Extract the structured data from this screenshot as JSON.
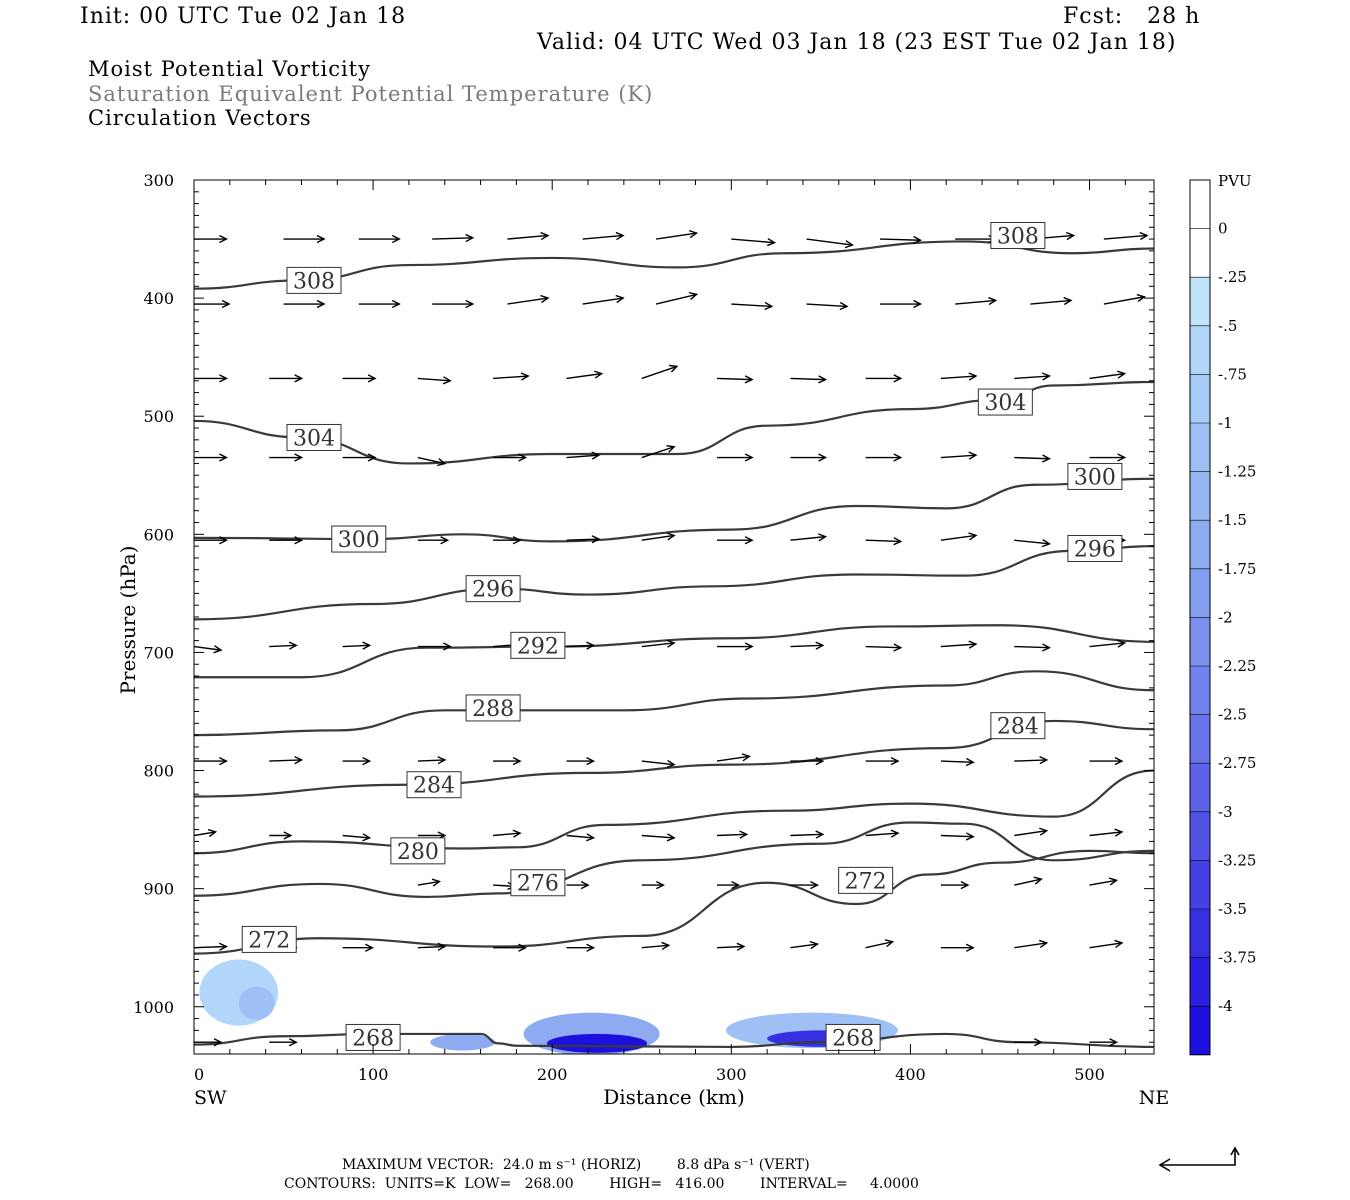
{
  "header": {
    "init": "Init: 00 UTC Tue 02 Jan 18",
    "fcst": "Fcst:   28 h",
    "valid": "Valid: 04 UTC Wed 03 Jan 18 (23 EST Tue 02 Jan 18)",
    "field1": "Moist Potential Vorticity",
    "field2": "Saturation Equivalent Potential Temperature (K)",
    "field3": "Circulation Vectors"
  },
  "footer": {
    "max_vector": "MAXIMUM VECTOR:  24.0 m s⁻¹ (HORIZ)        8.8 dPa s⁻¹ (VERT)",
    "contours": "CONTOURS:  UNITS=K  LOW=   268.00        HIGH=   416.00        INTERVAL=     4.0000"
  },
  "colors": {
    "contour": "#3a3a3a",
    "vector": "#000000",
    "axis": "#000000"
  },
  "chart_data": {
    "type": "contour",
    "xlabel": "Distance (km)",
    "ylabel": "Pressure (hPa)",
    "x_ticks": [
      "0",
      "100",
      "200",
      "300",
      "400",
      "500"
    ],
    "y_ticks": [
      "300",
      "400",
      "500",
      "600",
      "700",
      "800",
      "900",
      "1000"
    ],
    "xlim": [
      0,
      536
    ],
    "ylim": [
      1040,
      300
    ],
    "x_end_labels": {
      "left": "SW",
      "right": "NE"
    },
    "colorbar": {
      "unit": "PVU",
      "labels": [
        "0",
        "-.25",
        "-.5",
        "-.75",
        "-1",
        "-1.25",
        "-1.5",
        "-1.75",
        "-2",
        "-2.25",
        "-2.5",
        "-2.75",
        "-3",
        "-3.25",
        "-3.5",
        "-3.75",
        "-4"
      ],
      "colors": [
        "#ffffff",
        "#ffffff",
        "#c2e4fa",
        "#b2d6f9",
        "#a7ccf7",
        "#9ec0f5",
        "#96b6f4",
        "#8eabf2",
        "#859ff0",
        "#7c91ee",
        "#7282ec",
        "#6873ea",
        "#5d63e8",
        "#5152e6",
        "#4441e4",
        "#362fe2",
        "#2a1fe0",
        "#1d0fde"
      ]
    },
    "contours": [
      {
        "level": "308",
        "label_at": [
          [
            67,
            385
          ],
          [
            460,
            347
          ]
        ],
        "points": [
          [
            0,
            392
          ],
          [
            60,
            385
          ],
          [
            120,
            372
          ],
          [
            200,
            366
          ],
          [
            270,
            374
          ],
          [
            330,
            362
          ],
          [
            430,
            352
          ],
          [
            490,
            362
          ],
          [
            536,
            358
          ]
        ]
      },
      {
        "level": "304",
        "label_at": [
          [
            67,
            518
          ],
          [
            453,
            488
          ]
        ],
        "points": [
          [
            0,
            504
          ],
          [
            60,
            518
          ],
          [
            120,
            540
          ],
          [
            200,
            532
          ],
          [
            270,
            532
          ],
          [
            320,
            508
          ],
          [
            400,
            494
          ],
          [
            450,
            486
          ],
          [
            480,
            474
          ],
          [
            536,
            471
          ]
        ]
      },
      {
        "level": "300",
        "label_at": [
          [
            92,
            604
          ],
          [
            503,
            551
          ]
        ],
        "points": [
          [
            0,
            603
          ],
          [
            100,
            604
          ],
          [
            150,
            600
          ],
          [
            200,
            606
          ],
          [
            300,
            596
          ],
          [
            370,
            576
          ],
          [
            420,
            578
          ],
          [
            470,
            558
          ],
          [
            536,
            553
          ]
        ]
      },
      {
        "level": "296",
        "label_at": [
          [
            167,
            646
          ],
          [
            503,
            612
          ]
        ],
        "points": [
          [
            0,
            672
          ],
          [
            100,
            659
          ],
          [
            170,
            646
          ],
          [
            220,
            651
          ],
          [
            290,
            644
          ],
          [
            370,
            634
          ],
          [
            430,
            635
          ],
          [
            490,
            614
          ],
          [
            536,
            610
          ]
        ]
      },
      {
        "level": "292",
        "label_at": [
          [
            192,
            694
          ]
        ],
        "points": [
          [
            0,
            721
          ],
          [
            60,
            721
          ],
          [
            130,
            696
          ],
          [
            200,
            695
          ],
          [
            300,
            688
          ],
          [
            390,
            678
          ],
          [
            450,
            677
          ],
          [
            536,
            691
          ]
        ]
      },
      {
        "level": "288",
        "label_at": [
          [
            167,
            747
          ]
        ],
        "points": [
          [
            0,
            770
          ],
          [
            80,
            766
          ],
          [
            140,
            749
          ],
          [
            240,
            749
          ],
          [
            310,
            739
          ],
          [
            420,
            728
          ],
          [
            470,
            716
          ],
          [
            536,
            732
          ]
        ]
      },
      {
        "level": "284",
        "label_at": [
          [
            134,
            812
          ],
          [
            460,
            762
          ]
        ],
        "points": [
          [
            0,
            822
          ],
          [
            120,
            812
          ],
          [
            220,
            802
          ],
          [
            300,
            795
          ],
          [
            420,
            781
          ],
          [
            480,
            758
          ],
          [
            536,
            765
          ]
        ]
      },
      {
        "level": "280",
        "label_at": [
          [
            125,
            868
          ]
        ],
        "points": [
          [
            0,
            870
          ],
          [
            60,
            860
          ],
          [
            150,
            866
          ],
          [
            180,
            865
          ],
          [
            230,
            846
          ],
          [
            330,
            834
          ],
          [
            400,
            828
          ],
          [
            480,
            839
          ],
          [
            536,
            800
          ]
        ]
      },
      {
        "level": "276",
        "label_at": [
          [
            192,
            895
          ]
        ],
        "points": [
          [
            0,
            906
          ],
          [
            70,
            896
          ],
          [
            130,
            907
          ],
          [
            170,
            904
          ],
          [
            250,
            876
          ],
          [
            350,
            862
          ],
          [
            400,
            844
          ],
          [
            430,
            845
          ],
          [
            480,
            876
          ],
          [
            536,
            868
          ]
        ]
      },
      {
        "level": "272",
        "label_at": [
          [
            42,
            943
          ],
          [
            375,
            893
          ]
        ],
        "points": [
          [
            0,
            955
          ],
          [
            70,
            942
          ],
          [
            170,
            949
          ],
          [
            250,
            940
          ],
          [
            320,
            895
          ],
          [
            370,
            913
          ],
          [
            410,
            888
          ],
          [
            450,
            878
          ],
          [
            500,
            868
          ],
          [
            536,
            870
          ]
        ]
      },
      {
        "level": "268",
        "label_at": [
          [
            100,
            1026
          ],
          [
            368,
            1026
          ]
        ],
        "points": [
          [
            0,
            1032
          ],
          [
            50,
            1025
          ],
          [
            100,
            1023
          ],
          [
            160,
            1023
          ],
          [
            170,
            1031
          ],
          [
            180,
            1033
          ],
          [
            300,
            1034
          ],
          [
            350,
            1030
          ],
          [
            420,
            1023
          ],
          [
            460,
            1030
          ],
          [
            536,
            1034
          ]
        ]
      }
    ],
    "pv_regions": [
      {
        "center": [
          25,
          988
        ],
        "radius": [
          22,
          28
        ],
        "value": -0.5
      },
      {
        "center": [
          35,
          997
        ],
        "radius": [
          10,
          14
        ],
        "value": -1.0
      },
      {
        "center": [
          150,
          1030
        ],
        "radius": [
          18,
          7
        ],
        "value": -1.5
      },
      {
        "center": [
          222,
          1023
        ],
        "radius": [
          38,
          18
        ],
        "value": -1.5
      },
      {
        "center": [
          225,
          1031
        ],
        "radius": [
          28,
          8
        ],
        "value": -4.0
      },
      {
        "center": [
          345,
          1020
        ],
        "radius": [
          48,
          15
        ],
        "value": -1.0
      },
      {
        "center": [
          350,
          1027
        ],
        "radius": [
          30,
          7
        ],
        "value": -3.5
      }
    ],
    "vectors": [
      [
        0,
        350,
        12,
        0
      ],
      [
        50,
        350,
        15,
        0
      ],
      [
        92,
        350,
        15,
        0
      ],
      [
        133,
        350,
        15,
        -1
      ],
      [
        175,
        350,
        15,
        -3
      ],
      [
        217,
        350,
        15,
        -3
      ],
      [
        258,
        350,
        15,
        -5
      ],
      [
        300,
        350,
        16,
        3
      ],
      [
        342,
        350,
        17,
        5
      ],
      [
        383,
        350,
        15,
        1
      ],
      [
        425,
        350,
        15,
        0
      ],
      [
        467,
        350,
        16,
        -3
      ],
      [
        508,
        350,
        16,
        -3
      ],
      [
        0,
        405,
        13,
        0
      ],
      [
        50,
        405,
        15,
        0
      ],
      [
        92,
        405,
        15,
        0
      ],
      [
        133,
        405,
        15,
        0
      ],
      [
        175,
        405,
        15,
        -5
      ],
      [
        217,
        405,
        15,
        -5
      ],
      [
        258,
        405,
        15,
        -8
      ],
      [
        300,
        405,
        15,
        2
      ],
      [
        342,
        405,
        15,
        2
      ],
      [
        383,
        405,
        15,
        0
      ],
      [
        425,
        405,
        15,
        -3
      ],
      [
        467,
        405,
        15,
        -3
      ],
      [
        508,
        405,
        15,
        -6
      ],
      [
        0,
        468,
        12,
        0
      ],
      [
        42,
        468,
        12,
        0
      ],
      [
        83,
        468,
        12,
        0
      ],
      [
        125,
        468,
        12,
        2
      ],
      [
        167,
        468,
        13,
        -2
      ],
      [
        208,
        468,
        13,
        -4
      ],
      [
        250,
        468,
        13,
        -10
      ],
      [
        292,
        468,
        13,
        1
      ],
      [
        333,
        468,
        13,
        1
      ],
      [
        375,
        468,
        13,
        0
      ],
      [
        417,
        468,
        13,
        -2
      ],
      [
        458,
        468,
        13,
        -2
      ],
      [
        500,
        468,
        13,
        -4
      ],
      [
        0,
        535,
        12,
        0
      ],
      [
        42,
        535,
        12,
        0
      ],
      [
        83,
        535,
        12,
        0
      ],
      [
        125,
        535,
        10,
        5
      ],
      [
        167,
        535,
        12,
        0
      ],
      [
        208,
        535,
        12,
        -2
      ],
      [
        250,
        535,
        12,
        -9
      ],
      [
        292,
        535,
        13,
        0
      ],
      [
        333,
        535,
        13,
        0
      ],
      [
        375,
        535,
        13,
        0
      ],
      [
        417,
        535,
        13,
        -2
      ],
      [
        458,
        535,
        13,
        1
      ],
      [
        500,
        535,
        13,
        0
      ],
      [
        0,
        605,
        12,
        0
      ],
      [
        42,
        605,
        12,
        0
      ],
      [
        83,
        605,
        12,
        0
      ],
      [
        125,
        605,
        11,
        0
      ],
      [
        167,
        605,
        10,
        0
      ],
      [
        208,
        605,
        12,
        -1
      ],
      [
        250,
        605,
        12,
        -4
      ],
      [
        292,
        605,
        13,
        0
      ],
      [
        333,
        605,
        13,
        -3
      ],
      [
        375,
        605,
        13,
        1
      ],
      [
        417,
        605,
        13,
        -4
      ],
      [
        458,
        605,
        13,
        3
      ],
      [
        500,
        605,
        13,
        0
      ],
      [
        0,
        695,
        10,
        3
      ],
      [
        42,
        695,
        10,
        -1
      ],
      [
        83,
        695,
        10,
        -1
      ],
      [
        125,
        695,
        12,
        0
      ],
      [
        167,
        695,
        12,
        -2
      ],
      [
        208,
        695,
        10,
        -1
      ],
      [
        250,
        695,
        12,
        -3
      ],
      [
        292,
        695,
        13,
        0
      ],
      [
        333,
        695,
        12,
        -1
      ],
      [
        375,
        695,
        13,
        1
      ],
      [
        417,
        695,
        13,
        -2
      ],
      [
        458,
        695,
        13,
        1
      ],
      [
        500,
        695,
        13,
        -3
      ],
      [
        0,
        792,
        12,
        0
      ],
      [
        42,
        792,
        12,
        -1
      ],
      [
        83,
        792,
        10,
        0
      ],
      [
        125,
        792,
        10,
        -1
      ],
      [
        167,
        792,
        10,
        0
      ],
      [
        208,
        792,
        10,
        0
      ],
      [
        250,
        792,
        12,
        3
      ],
      [
        292,
        792,
        12,
        -4
      ],
      [
        333,
        792,
        12,
        0
      ],
      [
        375,
        792,
        12,
        0
      ],
      [
        417,
        792,
        12,
        1
      ],
      [
        458,
        792,
        12,
        -1
      ],
      [
        500,
        792,
        12,
        0
      ],
      [
        0,
        855,
        8,
        -3
      ],
      [
        42,
        855,
        8,
        0
      ],
      [
        83,
        855,
        10,
        2
      ],
      [
        125,
        855,
        10,
        0
      ],
      [
        167,
        855,
        10,
        -2
      ],
      [
        208,
        855,
        10,
        2
      ],
      [
        250,
        855,
        12,
        2
      ],
      [
        292,
        855,
        11,
        -1
      ],
      [
        333,
        855,
        12,
        -1
      ],
      [
        375,
        855,
        12,
        -2
      ],
      [
        417,
        855,
        12,
        1
      ],
      [
        458,
        855,
        12,
        -4
      ],
      [
        500,
        855,
        12,
        -3
      ],
      [
        0,
        950,
        12,
        -1
      ],
      [
        42,
        950,
        10,
        0
      ],
      [
        83,
        950,
        11,
        0
      ],
      [
        125,
        950,
        10,
        -1
      ],
      [
        167,
        950,
        12,
        0
      ],
      [
        208,
        950,
        10,
        0
      ],
      [
        250,
        950,
        10,
        -2
      ],
      [
        292,
        950,
        10,
        -1
      ],
      [
        333,
        950,
        10,
        -3
      ],
      [
        375,
        950,
        10,
        -5
      ],
      [
        417,
        950,
        12,
        0
      ],
      [
        458,
        950,
        12,
        -4
      ],
      [
        500,
        950,
        12,
        -4
      ],
      [
        0,
        897,
        0,
        0
      ],
      [
        125,
        897,
        8,
        -3
      ],
      [
        167,
        897,
        8,
        1
      ],
      [
        208,
        897,
        8,
        0
      ],
      [
        250,
        897,
        8,
        0
      ],
      [
        292,
        897,
        8,
        0
      ],
      [
        333,
        897,
        10,
        0
      ],
      [
        375,
        897,
        10,
        -1
      ],
      [
        417,
        897,
        10,
        0
      ],
      [
        458,
        897,
        10,
        -5
      ],
      [
        500,
        897,
        10,
        -4
      ],
      [
        0,
        1030,
        10,
        0
      ],
      [
        42,
        1030,
        10,
        0
      ],
      [
        458,
        1030,
        10,
        0
      ],
      [
        500,
        1030,
        10,
        0
      ]
    ]
  }
}
